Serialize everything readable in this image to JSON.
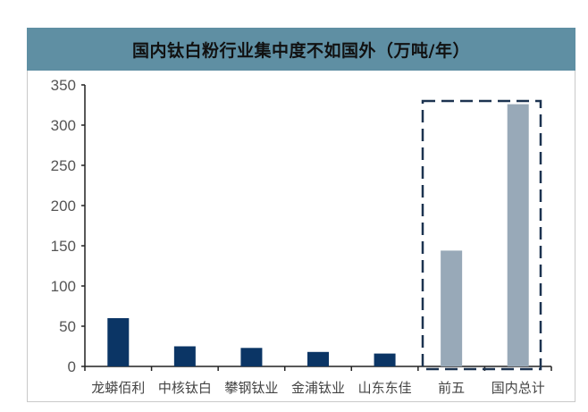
{
  "chart_data": {
    "type": "bar",
    "title": "国内钛白粉行业集中度不如国外（万吨/年）",
    "xlabel": "",
    "ylabel": "",
    "categories": [
      "龙蟒佰利",
      "中核钛白",
      "攀钢钛业",
      "金浦钛业",
      "山东东佳",
      "前五",
      "国内总计"
    ],
    "values": [
      60,
      25,
      23,
      18,
      16,
      144,
      326
    ],
    "bar_colors": [
      "#0b3565",
      "#0b3565",
      "#0b3565",
      "#0b3565",
      "#0b3565",
      "#98a9b8",
      "#98a9b8"
    ],
    "ylim": [
      0,
      350
    ],
    "yticks": [
      0,
      50,
      100,
      150,
      200,
      250,
      300,
      350
    ],
    "grid": false,
    "highlight_box": {
      "categories": [
        "前五",
        "国内总计"
      ],
      "style": "dashed",
      "color": "#1c3350"
    },
    "title_bar_color": "#5f8fa3"
  }
}
